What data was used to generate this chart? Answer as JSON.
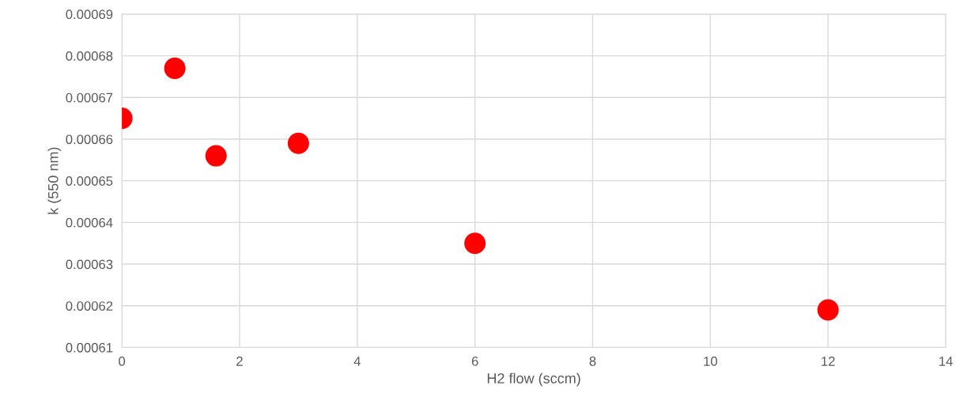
{
  "chart_data": {
    "type": "scatter",
    "xlabel": "H2 flow (sccm)",
    "ylabel": "k (550 nm)",
    "x": [
      0,
      0.9,
      1.6,
      3,
      6,
      12
    ],
    "series": [
      {
        "color": "#ff0000",
        "values": [
          0.000665,
          0.000677,
          0.000656,
          0.000659,
          0.000635,
          0.000619
        ]
      }
    ],
    "xlim": [
      0,
      14
    ],
    "xticks": [
      0,
      2,
      4,
      6,
      8,
      10,
      12,
      14
    ],
    "ylim": [
      0.00061,
      0.00069
    ],
    "yticks": [
      0.00061,
      0.00062,
      0.00063,
      0.00064,
      0.00065,
      0.00066,
      0.00067,
      0.00068,
      0.00069
    ],
    "grid": true,
    "marker": "circle"
  }
}
